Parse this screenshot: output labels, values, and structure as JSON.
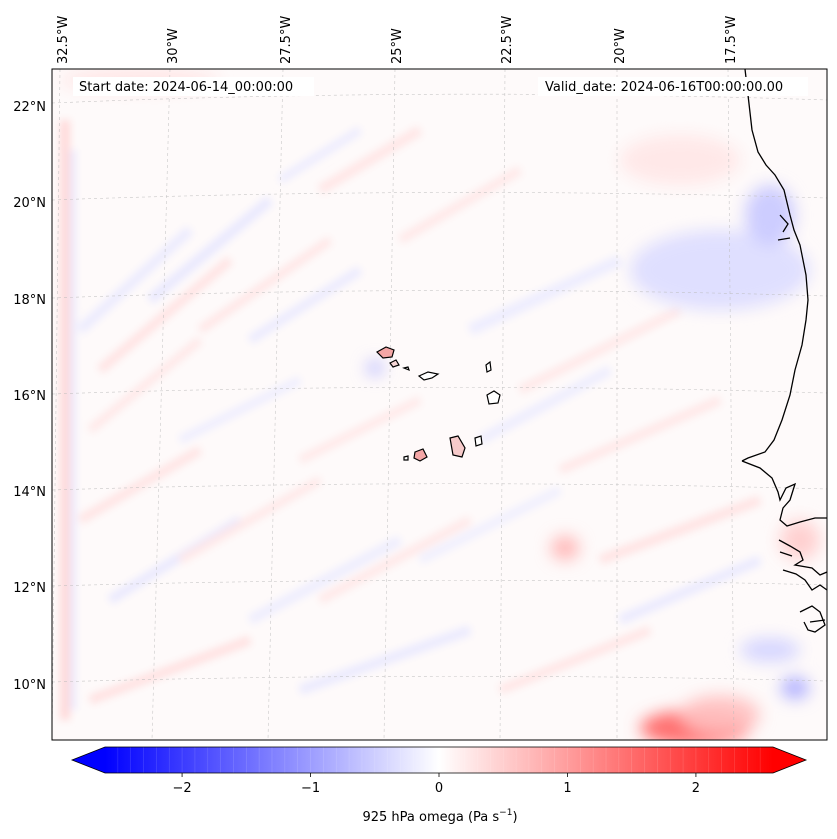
{
  "header": {
    "start_date": "Start date: 2024-06-14_00:00:00",
    "valid_date": "Valid_date: 2024-06-16T00:00:00.00"
  },
  "axes": {
    "lon_ticks": [
      "32.5°W",
      "30°W",
      "27.5°W",
      "25°W",
      "22.5°W",
      "20°W",
      "17.5°W"
    ],
    "lat_ticks": [
      "22°N",
      "20°N",
      "18°N",
      "16°N",
      "14°N",
      "12°N",
      "10°N"
    ]
  },
  "colorbar": {
    "ticks": [
      "−2",
      "−1",
      "0",
      "1",
      "2"
    ],
    "tick_values": [
      -2,
      -1,
      0,
      1,
      2
    ],
    "range": [
      -2.6,
      2.6
    ],
    "label_text": "925 hPa omega (Pa s",
    "label_exp": "−1",
    "label_close": ")",
    "color_min": "#0000ff",
    "color_mid": "#ffffff",
    "color_max": "#ff0000"
  },
  "chart_data": {
    "type": "heatmap",
    "variable": "925 hPa omega",
    "units": "Pa s−1",
    "lon_range": [
      -33.0,
      -15.0
    ],
    "lat_range": [
      9.0,
      22.5
    ],
    "vmin": -2.6,
    "vmax": 2.6,
    "features": [
      {
        "kind": "band",
        "lon": -32.2,
        "lat": 15.5,
        "value": 0.4
      },
      {
        "kind": "blob",
        "lon": -16.0,
        "lat": 19.4,
        "value": -0.4
      },
      {
        "kind": "blob",
        "lon": -17.5,
        "lat": 18.5,
        "value": -0.5
      },
      {
        "kind": "blob",
        "lon": -20.0,
        "lat": 12.8,
        "value": 0.4
      },
      {
        "kind": "blob",
        "lon": -18.8,
        "lat": 9.2,
        "value": 1.6
      },
      {
        "kind": "blob",
        "lon": -15.3,
        "lat": 9.7,
        "value": -0.8
      },
      {
        "kind": "blob",
        "lon": -22.8,
        "lat": 14.9,
        "value": 0.6
      },
      {
        "kind": "blob",
        "lon": -24.6,
        "lat": 14.8,
        "value": 0.6
      },
      {
        "kind": "blob",
        "lon": -25.1,
        "lat": 16.9,
        "value": 0.7
      },
      {
        "kind": "blob",
        "lon": -25.2,
        "lat": 16.5,
        "value": -0.5
      }
    ]
  }
}
